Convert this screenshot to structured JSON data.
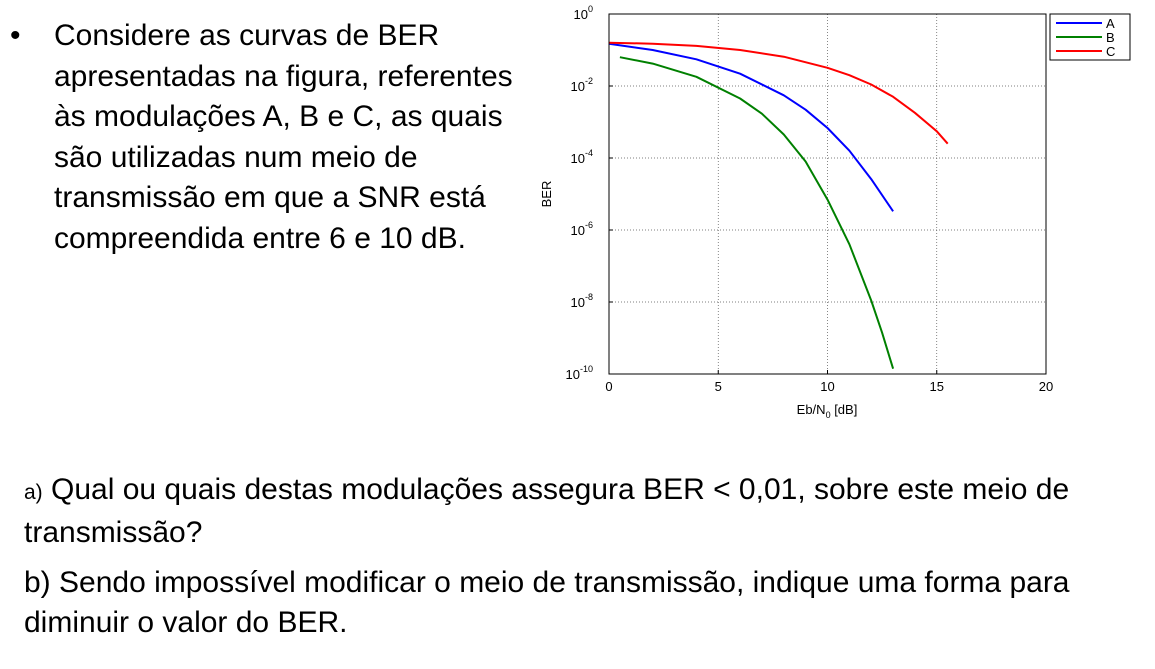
{
  "bullet": {
    "marker": "•",
    "text": "Considere as curvas de BER apresentadas na figura, referentes às modulações A, B e C, as quais são utilizadas num meio de transmissão em que a SNR está compreendida entre 6 e 10 dB."
  },
  "questions": {
    "a_marker": "a)",
    "a_text": " Qual ou quais destas modulações assegura BER <  0,01, sobre este meio de transmissão?",
    "b_text": "b) Sendo impossível modificar o meio de transmissão, indique uma forma para diminuir o valor do BER."
  },
  "chart_data": {
    "type": "line",
    "ylabel": "BER",
    "xlabel_base": "Eb/N",
    "xlabel_sub": "0",
    "xlabel_suffix": " [dB]",
    "xlim": [
      0,
      20
    ],
    "ylim": [
      1e-10,
      1
    ],
    "yscale": "log",
    "grid": true,
    "legend_position": "top-right",
    "x_ticks": [
      "0",
      "5",
      "10",
      "15",
      "20"
    ],
    "y_ticks": [
      {
        "base": "10",
        "exp": "0",
        "value": 1
      },
      {
        "base": "10",
        "exp": "-2",
        "value": 0.01
      },
      {
        "base": "10",
        "exp": "-4",
        "value": 0.0001
      },
      {
        "base": "10",
        "exp": "-6",
        "value": 1e-06
      },
      {
        "base": "10",
        "exp": "-8",
        "value": 1e-08
      },
      {
        "base": "10",
        "exp": "-10",
        "value": 1e-10
      }
    ],
    "series": [
      {
        "name": "A",
        "color": "#0000ff",
        "x": [
          0,
          2,
          4,
          6,
          8,
          9,
          10,
          11,
          12,
          13
        ],
        "y": [
          0.15,
          0.1,
          0.055,
          0.022,
          0.0055,
          0.0022,
          0.00068,
          0.00016,
          2.6e-05,
          3.3e-06
        ]
      },
      {
        "name": "B",
        "color": "#008000",
        "x": [
          0.5,
          2,
          4,
          6,
          7,
          8,
          9,
          10,
          11,
          12,
          12.5,
          13
        ],
        "y": [
          0.063,
          0.042,
          0.018,
          0.0045,
          0.0017,
          0.00045,
          8e-05,
          7e-06,
          4e-07,
          1.1e-08,
          1.4e-09,
          1.4e-10
        ]
      },
      {
        "name": "C",
        "color": "#ff0000",
        "x": [
          0,
          2,
          4,
          6,
          8,
          10,
          11,
          12,
          13,
          14,
          15,
          15.5
        ],
        "y": [
          0.16,
          0.15,
          0.13,
          0.1,
          0.065,
          0.032,
          0.02,
          0.011,
          0.005,
          0.0018,
          0.00055,
          0.00025
        ]
      }
    ]
  }
}
